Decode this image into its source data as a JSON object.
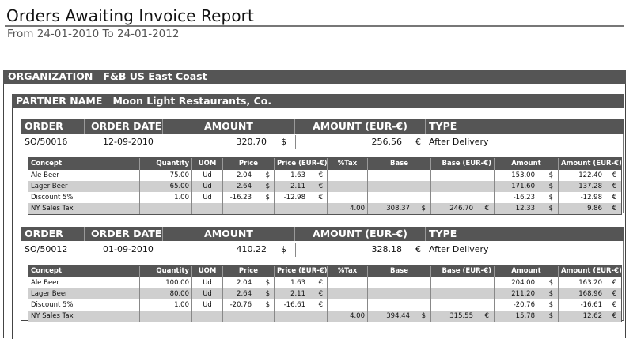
{
  "report": {
    "title": "Orders Awaiting Invoice Report",
    "subtitle": "From 24-01-2010 To 24-01-2012"
  },
  "organization": {
    "label": "ORGANIZATION",
    "value": "F&B US East Coast"
  },
  "partner": {
    "label": "PARTNER NAME",
    "value": "Moon Light Restaurants, Co."
  },
  "order_headers": {
    "order": "ORDER",
    "order_date": "ORDER DATE",
    "amount": "AMOUNT",
    "amount_eur": "AMOUNT (EUR-€)",
    "type": "TYPE"
  },
  "detail_headers": {
    "concept": "Concept",
    "quantity": "Quantity",
    "uom": "UOM",
    "price": "Price",
    "price_eur": "Price  (EUR-€)",
    "tax": "%Tax",
    "base": "Base",
    "base_eur": "Base  (EUR-€)",
    "amount": "Amount",
    "amount_eur": "Amount  (EUR-€)"
  },
  "currency": {
    "usd": "$",
    "eur": "€"
  },
  "orders": [
    {
      "order": "SO/50016",
      "order_date": "12-09-2010",
      "amount": "320.70",
      "amount_eur": "256.56",
      "type": "After Delivery",
      "lines": [
        {
          "concept": "Ale Beer",
          "quantity": "75.00",
          "uom": "Ud",
          "price": "2.04",
          "price_eur": "1.63",
          "tax": "",
          "base": "",
          "base_eur": "",
          "amount": "153.00",
          "amount_eur": "122.40"
        },
        {
          "concept": "Lager Beer",
          "quantity": "65.00",
          "uom": "Ud",
          "price": "2.64",
          "price_eur": "2.11",
          "tax": "",
          "base": "",
          "base_eur": "",
          "amount": "171.60",
          "amount_eur": "137.28"
        },
        {
          "concept": "Discount 5%",
          "quantity": "1.00",
          "uom": "Ud",
          "price": "-16.23",
          "price_eur": "-12.98",
          "tax": "",
          "base": "",
          "base_eur": "",
          "amount": "-16.23",
          "amount_eur": "-12.98"
        },
        {
          "concept": "NY Sales Tax",
          "quantity": "",
          "uom": "",
          "price": "",
          "price_eur": "",
          "tax": "4.00",
          "base": "308.37",
          "base_eur": "246.70",
          "amount": "12.33",
          "amount_eur": "9.86"
        }
      ]
    },
    {
      "order": "SO/50012",
      "order_date": "01-09-2010",
      "amount": "410.22",
      "amount_eur": "328.18",
      "type": "After Delivery",
      "lines": [
        {
          "concept": "Ale Beer",
          "quantity": "100.00",
          "uom": "Ud",
          "price": "2.04",
          "price_eur": "1.63",
          "tax": "",
          "base": "",
          "base_eur": "",
          "amount": "204.00",
          "amount_eur": "163.20"
        },
        {
          "concept": "Lager Beer",
          "quantity": "80.00",
          "uom": "Ud",
          "price": "2.64",
          "price_eur": "2.11",
          "tax": "",
          "base": "",
          "base_eur": "",
          "amount": "211.20",
          "amount_eur": "168.96"
        },
        {
          "concept": "Discount 5%",
          "quantity": "1.00",
          "uom": "Ud",
          "price": "-20.76",
          "price_eur": "-16.61",
          "tax": "",
          "base": "",
          "base_eur": "",
          "amount": "-20.76",
          "amount_eur": "-16.61"
        },
        {
          "concept": "NY Sales Tax",
          "quantity": "",
          "uom": "",
          "price": "",
          "price_eur": "",
          "tax": "4.00",
          "base": "394.44",
          "base_eur": "315.55",
          "amount": "15.78",
          "amount_eur": "12.62"
        }
      ]
    }
  ]
}
